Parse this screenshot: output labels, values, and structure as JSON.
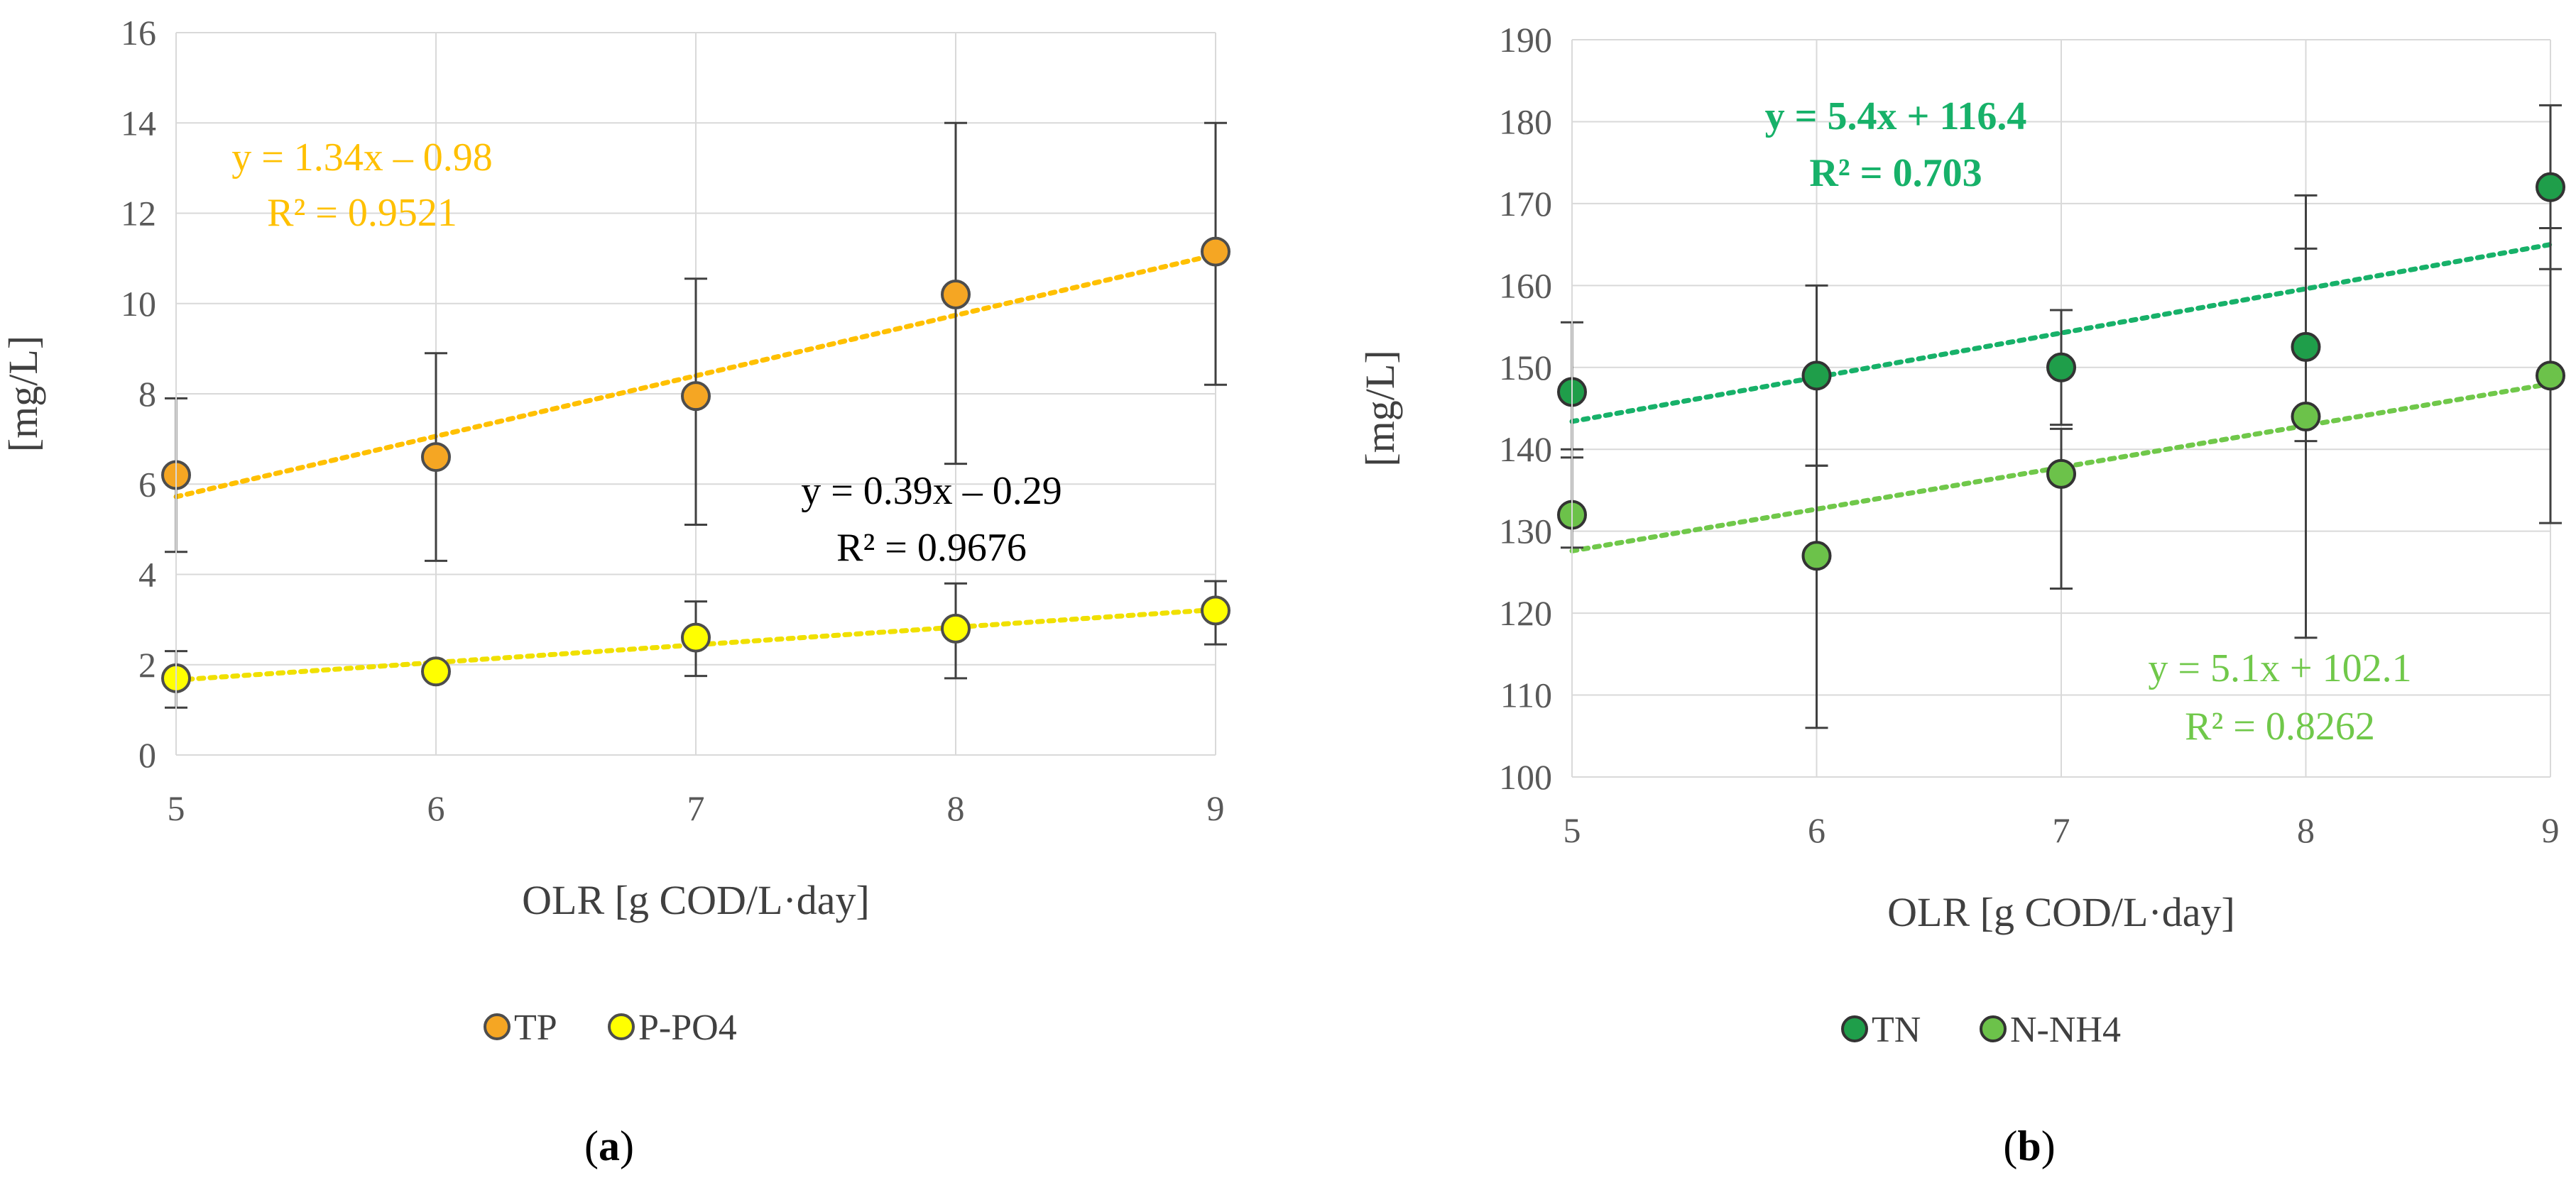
{
  "chart_data": [
    {
      "type": "scatter",
      "panel_label": "(a)",
      "panel_letter": "a",
      "xlabel": "OLR [g COD/L·day]",
      "ylabel": "[mg/L]",
      "xlim": [
        5,
        9
      ],
      "ylim": [
        0,
        16
      ],
      "xticks": [
        "5",
        "6",
        "7",
        "8",
        "9"
      ],
      "yticks": [
        "0",
        "2",
        "4",
        "6",
        "8",
        "10",
        "12",
        "14",
        "16"
      ],
      "grid": true,
      "legend_position": "bottom-left",
      "series": [
        {
          "name": "TP",
          "color": "#f5a623",
          "edge_color": "#4d4d4d",
          "x": [
            5,
            6,
            7,
            8,
            9
          ],
          "y": [
            6.2,
            6.6,
            7.95,
            10.2,
            11.15
          ],
          "err_low": [
            4.5,
            4.3,
            5.1,
            6.45,
            8.2
          ],
          "err_high": [
            7.9,
            8.9,
            10.55,
            14.0,
            14.0
          ],
          "trendline": {
            "slope": 1.34,
            "intercept": -0.98,
            "color": "#ffc000",
            "equation": "y = 1.34x – 0.98",
            "r2": "R² = 0.9521"
          }
        },
        {
          "name": "P-PO4",
          "color": "#ffff00",
          "edge_color": "#4d4d4d",
          "x": [
            5,
            6,
            7,
            8,
            9
          ],
          "y": [
            1.7,
            1.85,
            2.6,
            2.8,
            3.2
          ],
          "err_low": [
            1.05,
            1.8,
            1.75,
            1.7,
            2.45
          ],
          "err_high": [
            2.3,
            1.9,
            3.4,
            3.8,
            3.85
          ],
          "trendline": {
            "slope": 0.39,
            "intercept": -0.29,
            "color": "#f0e000",
            "equation": "y = 0.39x – 0.29",
            "r2": "R² = 0.9676"
          }
        }
      ]
    },
    {
      "type": "scatter",
      "panel_label": "(b)",
      "panel_letter": "b",
      "xlabel": "OLR [g COD/L·day]",
      "ylabel": "[mg/L]",
      "xlim": [
        5,
        9
      ],
      "ylim": [
        100,
        190
      ],
      "xticks": [
        "5",
        "6",
        "7",
        "8",
        "9"
      ],
      "yticks": [
        "100",
        "110",
        "120",
        "130",
        "140",
        "150",
        "160",
        "170",
        "180",
        "190"
      ],
      "grid": true,
      "legend_position": "bottom-left",
      "series": [
        {
          "name": "TN",
          "color": "#1f9e4a",
          "edge_color": "#333333",
          "x": [
            5,
            6,
            7,
            8,
            9
          ],
          "y": [
            147,
            149,
            150,
            152.5,
            172
          ],
          "err_low": [
            139,
            138,
            143,
            141,
            162
          ],
          "err_high": [
            155.5,
            160,
            157,
            171,
            182
          ],
          "trendline": {
            "slope": 5.4,
            "intercept": 116.4,
            "color": "#17b169",
            "equation": "y = 5.4x + 116.4",
            "r2": "R² = 0.703"
          }
        },
        {
          "name": "N-NH4",
          "color": "#6cc24a",
          "edge_color": "#333333",
          "x": [
            5,
            6,
            7,
            8,
            9
          ],
          "y": [
            132,
            127,
            137,
            144,
            149
          ],
          "err_low": [
            128,
            106,
            123,
            117,
            131
          ],
          "err_high": [
            140,
            138,
            142.5,
            164.5,
            167
          ],
          "trendline": {
            "slope": 5.1,
            "intercept": 102.1,
            "color": "#70c84a",
            "equation": "y = 5.1x + 102.1",
            "r2": "R² = 0.8262"
          }
        }
      ]
    }
  ]
}
